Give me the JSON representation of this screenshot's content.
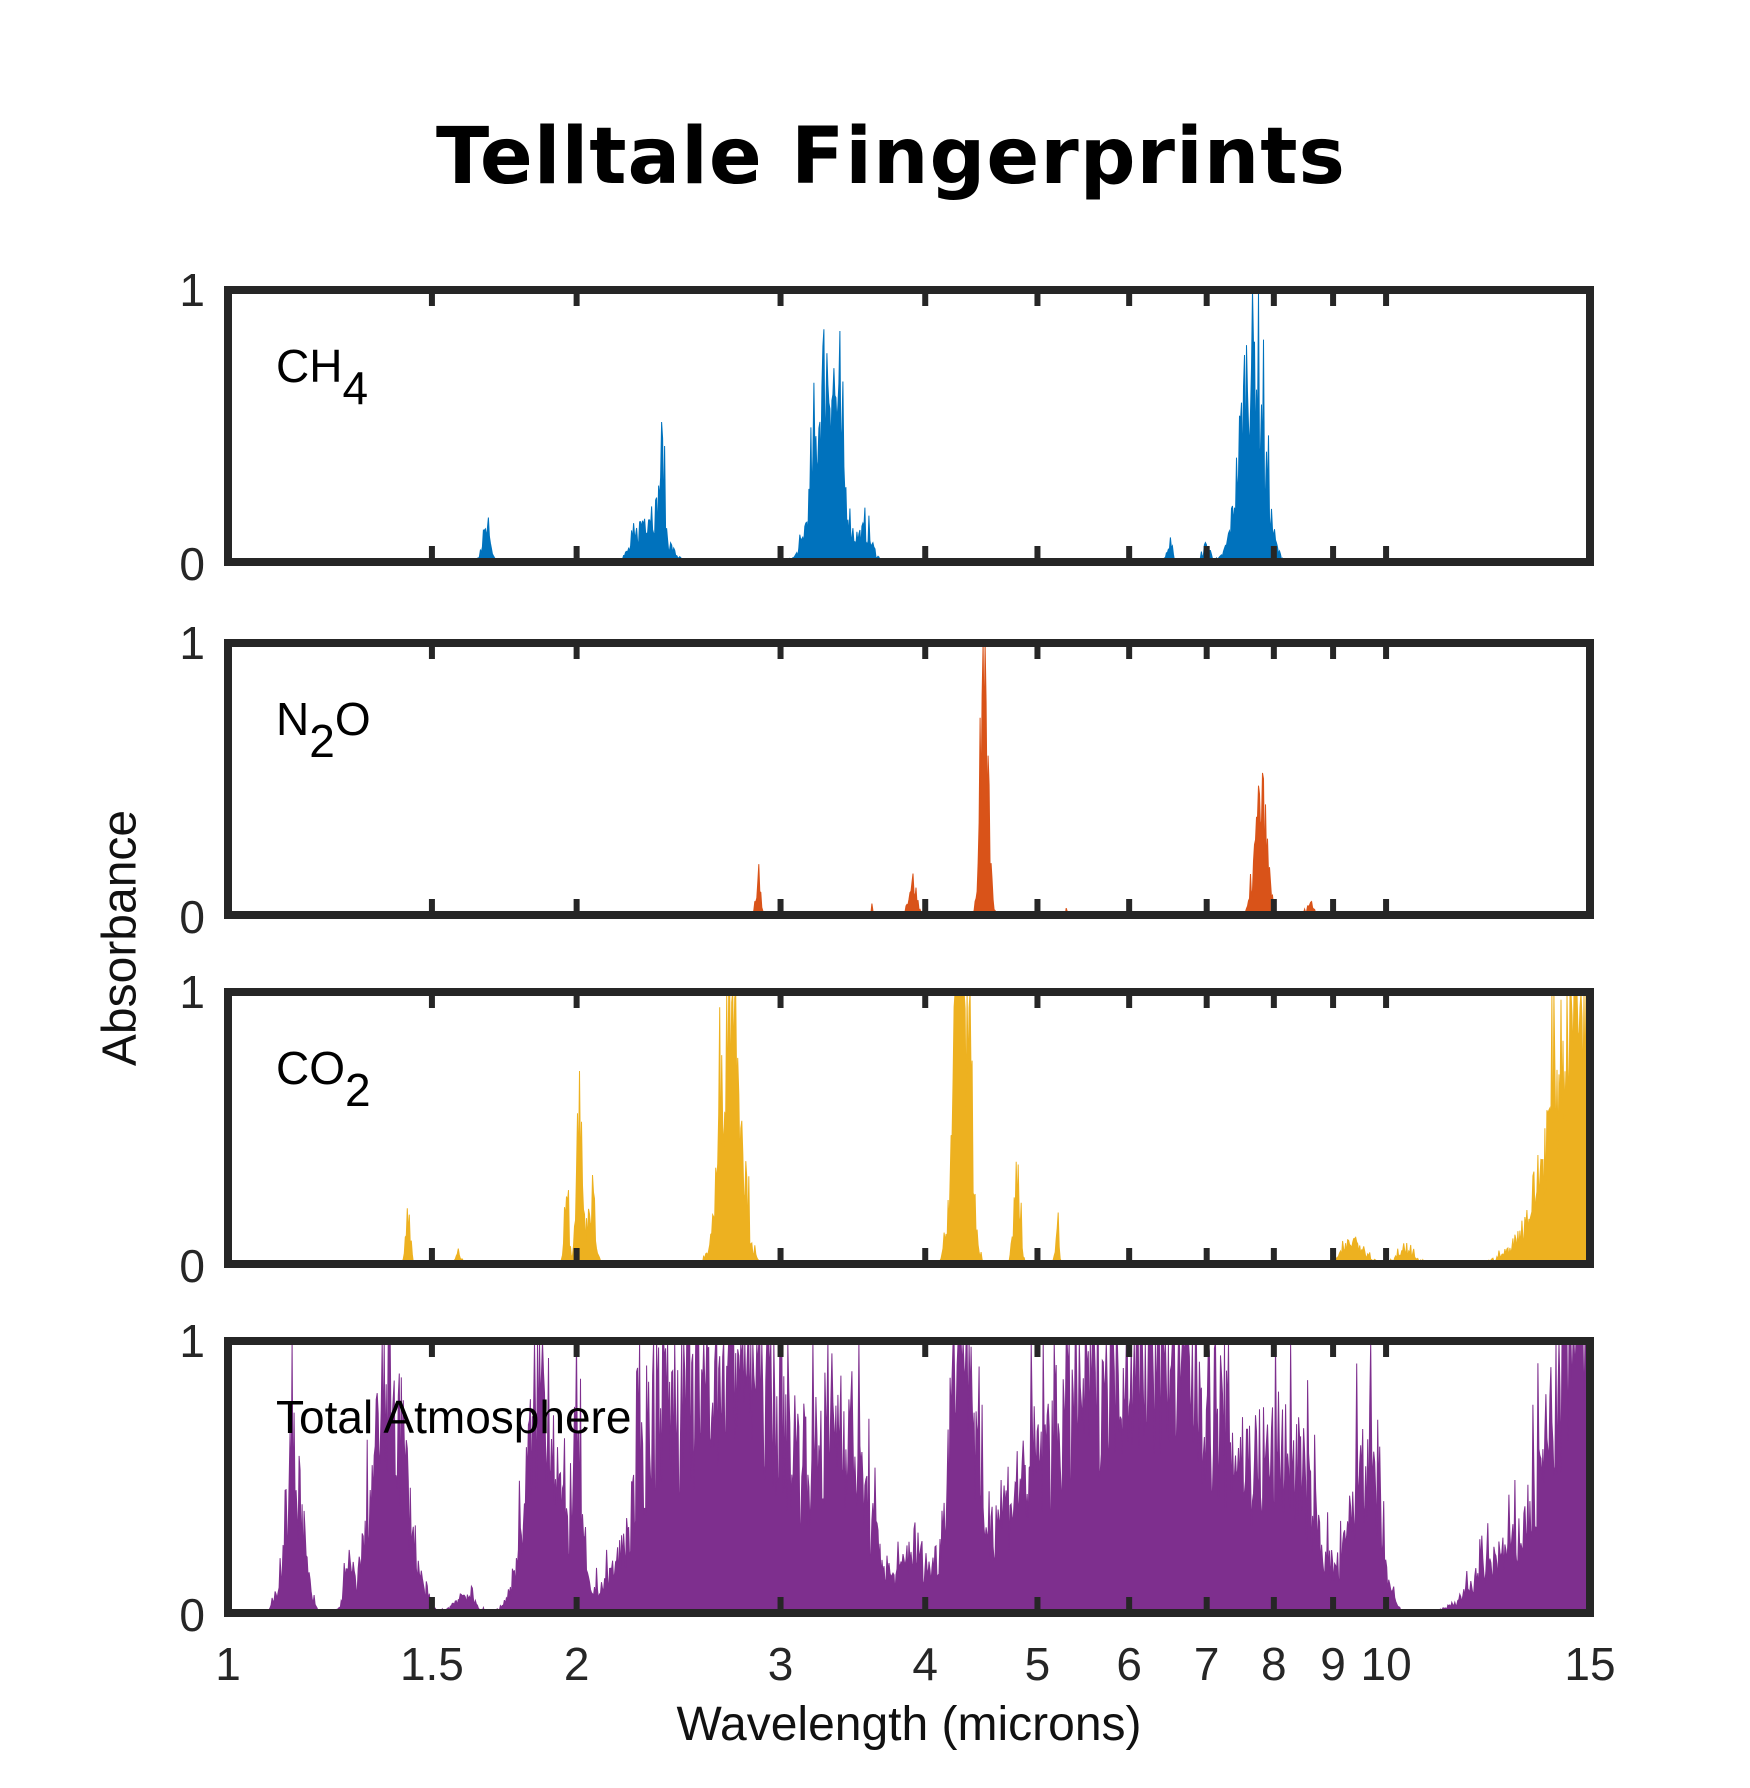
{
  "chart_data": {
    "type": "area",
    "title": "Telltale Fingerprints",
    "xlabel": "Wavelength (microns)",
    "ylabel": "Absorbance",
    "xscale": "log",
    "xlim": [
      1,
      15
    ],
    "ylim": [
      0,
      1
    ],
    "xticks": [
      1,
      1.5,
      2,
      3,
      4,
      5,
      6,
      7,
      8,
      9,
      10,
      15
    ],
    "xtick_labels": [
      "1",
      "1.5",
      "2",
      "3",
      "4",
      "5",
      "6",
      "7",
      "8",
      "9",
      "10",
      "15"
    ],
    "yticks": [
      0,
      1
    ],
    "ytick_labels": [
      "0",
      "1"
    ],
    "panels": [
      {
        "name": "CH4",
        "label_main": "CH",
        "label_sub": "4",
        "color": "#0072BD",
        "peaks_center_width_height": [
          [
            1.31,
            0.003,
            0.01
          ],
          [
            1.67,
            0.015,
            0.12
          ],
          [
            2.32,
            0.06,
            0.22
          ],
          [
            2.37,
            0.01,
            0.3
          ],
          [
            3.3,
            0.08,
            0.85
          ],
          [
            3.55,
            0.05,
            0.12
          ],
          [
            6.5,
            0.04,
            0.06
          ],
          [
            7.0,
            0.05,
            0.07
          ],
          [
            7.66,
            0.17,
            0.9
          ]
        ]
      },
      {
        "name": "N2O",
        "label_main": "N",
        "label_sub": "2",
        "label_tail": "O",
        "color": "#D95319",
        "peaks_center_width_height": [
          [
            2.87,
            0.012,
            0.17
          ],
          [
            3.6,
            0.005,
            0.05
          ],
          [
            3.9,
            0.03,
            0.14
          ],
          [
            4.5,
            0.035,
            0.85
          ],
          [
            5.3,
            0.005,
            0.03
          ],
          [
            7.8,
            0.09,
            0.48
          ],
          [
            8.6,
            0.06,
            0.05
          ]
        ]
      },
      {
        "name": "CO2",
        "label_main": "CO",
        "label_sub": "2",
        "color": "#EDB120",
        "peaks_center_width_height": [
          [
            1.43,
            0.006,
            0.2
          ],
          [
            1.58,
            0.01,
            0.05
          ],
          [
            1.96,
            0.008,
            0.4
          ],
          [
            2.01,
            0.012,
            0.65
          ],
          [
            2.06,
            0.015,
            0.3
          ],
          [
            2.72,
            0.05,
            1.3
          ],
          [
            4.3,
            0.06,
            1.5
          ],
          [
            4.8,
            0.03,
            0.35
          ],
          [
            5.2,
            0.02,
            0.14
          ],
          [
            9.4,
            0.2,
            0.1
          ],
          [
            10.4,
            0.2,
            0.05
          ],
          [
            15,
            0.9,
            1.4
          ]
        ]
      },
      {
        "name": "Total Atmosphere",
        "label_main": "Total Atmosphere",
        "color": "#7E2F8E",
        "peaks_center_width_height": [
          [
            1.14,
            0.02,
            0.65
          ],
          [
            1.27,
            0.01,
            0.15
          ],
          [
            1.38,
            0.045,
            1.0
          ],
          [
            1.6,
            0.03,
            0.08
          ],
          [
            1.87,
            0.055,
            1.0
          ],
          [
            2.0,
            0.02,
            0.6
          ],
          [
            2.35,
            0.08,
            0.5
          ],
          [
            2.75,
            0.3,
            1.2
          ],
          [
            3.4,
            0.15,
            0.7
          ],
          [
            3.9,
            0.06,
            0.15
          ],
          [
            4.3,
            0.08,
            1.3
          ],
          [
            6.2,
            1.1,
            1.25
          ],
          [
            8.3,
            0.4,
            0.5
          ],
          [
            9.6,
            0.25,
            0.7
          ],
          [
            12.3,
            0.5,
            0.15
          ],
          [
            15,
            1.1,
            1.4
          ]
        ]
      }
    ]
  }
}
